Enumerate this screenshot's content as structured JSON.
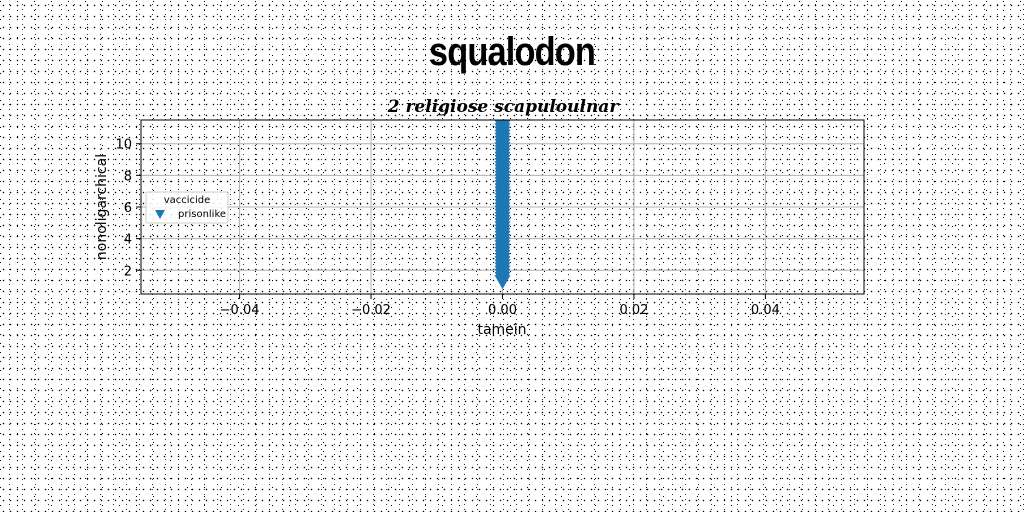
{
  "figure": {
    "title": "squalodon"
  },
  "chart_data": {
    "type": "scatter",
    "title": "2 religiose scapuloulnar",
    "xlabel": "tamein",
    "ylabel": "nonoligarchical",
    "xlim": [
      -0.055,
      0.055
    ],
    "ylim": [
      0.5,
      11.5
    ],
    "xticks": [
      -0.04,
      -0.02,
      0.0,
      0.02,
      0.04
    ],
    "xtick_labels": [
      "−0.04",
      "−0.02",
      "0.00",
      "0.02",
      "0.04"
    ],
    "yticks": [
      2,
      4,
      6,
      8,
      10
    ],
    "ytick_labels": [
      "2",
      "4",
      "6",
      "8",
      "10"
    ],
    "grid": true,
    "legend": {
      "title": "vaccicide",
      "placement": "center-left"
    },
    "series": [
      {
        "name": "prisonlike",
        "marker": "triangle-down",
        "color": "#1f77b4",
        "x": [
          0,
          0,
          0,
          0,
          0,
          0,
          0,
          0,
          0,
          0,
          0,
          0,
          0,
          0,
          0,
          0,
          0,
          0,
          0,
          0,
          0,
          0,
          0,
          0,
          0,
          0,
          0,
          0,
          0,
          0,
          0,
          0,
          0,
          0,
          0,
          0,
          0,
          0,
          0,
          0,
          0,
          0,
          0,
          0,
          0,
          0,
          0,
          0,
          0,
          0,
          0,
          0,
          0,
          0,
          0,
          0
        ],
        "y": [
          1.0,
          1.2,
          1.4,
          1.6,
          1.8,
          2.0,
          2.2,
          2.4,
          2.6,
          2.8,
          3.0,
          3.2,
          3.4,
          3.6,
          3.8,
          4.0,
          4.2,
          4.4,
          4.6,
          4.8,
          5.0,
          5.2,
          5.4,
          5.6,
          5.8,
          6.0,
          6.2,
          6.4,
          6.6,
          6.8,
          7.0,
          7.2,
          7.4,
          7.6,
          7.8,
          8.0,
          8.2,
          8.4,
          8.6,
          8.8,
          9.0,
          9.2,
          9.4,
          9.6,
          9.8,
          10.0,
          10.2,
          10.4,
          10.6,
          10.8,
          11.0,
          11.2,
          11.4,
          11.5,
          11.6,
          11.7
        ]
      }
    ]
  }
}
